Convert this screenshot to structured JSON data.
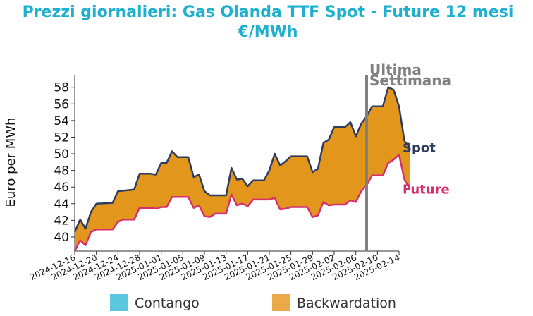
{
  "chart_data": {
    "type": "area",
    "title_lines": [
      "Prezzi giornalieri: Gas Olanda TTF Spot - Future 12 mesi",
      "€/MWh"
    ],
    "ylabel": "Euro per MWh",
    "xlabel": "",
    "ylim": [
      38.3,
      59.5
    ],
    "yticks": [
      40,
      42,
      44,
      46,
      48,
      50,
      52,
      54,
      56,
      58
    ],
    "xlim": [
      "2024-12-16",
      "2025-02-14"
    ],
    "xticks": [
      "2024-12-16",
      "2024-12-20",
      "2024-12-24",
      "2024-12-28",
      "2025-01-01",
      "2025-01-05",
      "2025-01-09",
      "2025-01-13",
      "2025-01-17",
      "2025-01-21",
      "2025-01-25",
      "2025-01-29",
      "2025-02-02",
      "2025-02-06",
      "2025-02-10",
      "2025-02-14"
    ],
    "grid": false,
    "legend": {
      "position": "bottom",
      "items": [
        {
          "label": "Contango",
          "color": "#5bc8df"
        },
        {
          "label": "Backwardation",
          "color": "#eba94a"
        }
      ]
    },
    "fill_color": "#e3961c",
    "series": [
      {
        "name": "Spot",
        "color": "#2d3c5e",
        "points": [
          [
            "2024-12-16",
            40.6
          ],
          [
            "2024-12-17",
            42.1
          ],
          [
            "2024-12-18",
            41.0
          ],
          [
            "2024-12-19",
            43.0
          ],
          [
            "2024-12-20",
            44.0
          ],
          [
            "2024-12-23",
            44.1
          ],
          [
            "2024-12-24",
            45.5
          ],
          [
            "2024-12-27",
            45.7
          ],
          [
            "2024-12-28",
            47.6
          ],
          [
            "2024-12-30",
            47.6
          ],
          [
            "2024-12-31",
            47.5
          ],
          [
            "2025-01-01",
            48.9
          ],
          [
            "2025-01-02",
            48.9
          ],
          [
            "2025-01-03",
            50.3
          ],
          [
            "2025-01-04",
            49.6
          ],
          [
            "2025-01-06",
            49.6
          ],
          [
            "2025-01-07",
            47.2
          ],
          [
            "2025-01-08",
            47.5
          ],
          [
            "2025-01-09",
            45.5
          ],
          [
            "2025-01-10",
            45.0
          ],
          [
            "2025-01-13",
            45.0
          ],
          [
            "2025-01-14",
            48.3
          ],
          [
            "2025-01-15",
            46.9
          ],
          [
            "2025-01-16",
            47.0
          ],
          [
            "2025-01-17",
            46.1
          ],
          [
            "2025-01-18",
            46.8
          ],
          [
            "2025-01-20",
            46.8
          ],
          [
            "2025-01-21",
            48.0
          ],
          [
            "2025-01-22",
            50.0
          ],
          [
            "2025-01-23",
            48.6
          ],
          [
            "2025-01-24",
            49.1
          ],
          [
            "2025-01-25",
            49.7
          ],
          [
            "2025-01-27",
            49.7
          ],
          [
            "2025-01-28",
            49.7
          ],
          [
            "2025-01-29",
            47.8
          ],
          [
            "2025-01-30",
            48.2
          ],
          [
            "2025-01-31",
            51.3
          ],
          [
            "2025-02-01",
            51.7
          ],
          [
            "2025-02-02",
            53.2
          ],
          [
            "2025-02-04",
            53.2
          ],
          [
            "2025-02-05",
            53.8
          ],
          [
            "2025-02-06",
            52.1
          ],
          [
            "2025-02-07",
            53.6
          ],
          [
            "2025-02-08",
            54.5
          ],
          [
            "2025-02-09",
            55.7
          ],
          [
            "2025-02-11",
            55.7
          ],
          [
            "2025-02-12",
            58.0
          ],
          [
            "2025-02-13",
            57.7
          ],
          [
            "2025-02-14",
            55.7
          ],
          [
            "2025-02-15",
            51.5
          ],
          [
            "2025-02-16",
            50.8
          ]
        ]
      },
      {
        "name": "Future",
        "color": "#d62f6e",
        "points": [
          [
            "2024-12-16",
            38.3
          ],
          [
            "2024-12-17",
            39.6
          ],
          [
            "2024-12-18",
            39.0
          ],
          [
            "2024-12-19",
            40.6
          ],
          [
            "2024-12-20",
            40.9
          ],
          [
            "2024-12-23",
            40.9
          ],
          [
            "2024-12-24",
            41.8
          ],
          [
            "2024-12-25",
            42.1
          ],
          [
            "2024-12-27",
            42.1
          ],
          [
            "2024-12-28",
            43.5
          ],
          [
            "2024-12-30",
            43.5
          ],
          [
            "2024-12-31",
            43.4
          ],
          [
            "2025-01-01",
            43.6
          ],
          [
            "2025-01-02",
            43.6
          ],
          [
            "2025-01-03",
            44.8
          ],
          [
            "2025-01-06",
            44.8
          ],
          [
            "2025-01-07",
            43.5
          ],
          [
            "2025-01-08",
            43.8
          ],
          [
            "2025-01-09",
            42.5
          ],
          [
            "2025-01-10",
            42.4
          ],
          [
            "2025-01-11",
            42.8
          ],
          [
            "2025-01-13",
            42.8
          ],
          [
            "2025-01-14",
            45.1
          ],
          [
            "2025-01-15",
            43.8
          ],
          [
            "2025-01-16",
            44.0
          ],
          [
            "2025-01-17",
            43.7
          ],
          [
            "2025-01-18",
            44.5
          ],
          [
            "2025-01-21",
            44.5
          ],
          [
            "2025-01-22",
            44.7
          ],
          [
            "2025-01-23",
            43.3
          ],
          [
            "2025-01-24",
            43.4
          ],
          [
            "2025-01-25",
            43.6
          ],
          [
            "2025-01-28",
            43.6
          ],
          [
            "2025-01-29",
            42.4
          ],
          [
            "2025-01-30",
            42.6
          ],
          [
            "2025-01-31",
            44.2
          ],
          [
            "2025-02-01",
            43.8
          ],
          [
            "2025-02-02",
            43.9
          ],
          [
            "2025-02-04",
            43.9
          ],
          [
            "2025-02-05",
            44.4
          ],
          [
            "2025-02-06",
            44.2
          ],
          [
            "2025-02-07",
            45.5
          ],
          [
            "2025-02-08",
            46.2
          ],
          [
            "2025-02-09",
            47.4
          ],
          [
            "2025-02-11",
            47.4
          ],
          [
            "2025-02-12",
            48.9
          ],
          [
            "2025-02-13",
            49.3
          ],
          [
            "2025-02-14",
            49.9
          ],
          [
            "2025-02-15",
            46.9
          ],
          [
            "2025-02-16",
            45.8
          ]
        ]
      }
    ],
    "annotations": [
      {
        "type": "vline",
        "x": "2025-02-08",
        "color": "#808080",
        "lines": [
          "Ultima",
          "Settimana"
        ]
      }
    ]
  }
}
